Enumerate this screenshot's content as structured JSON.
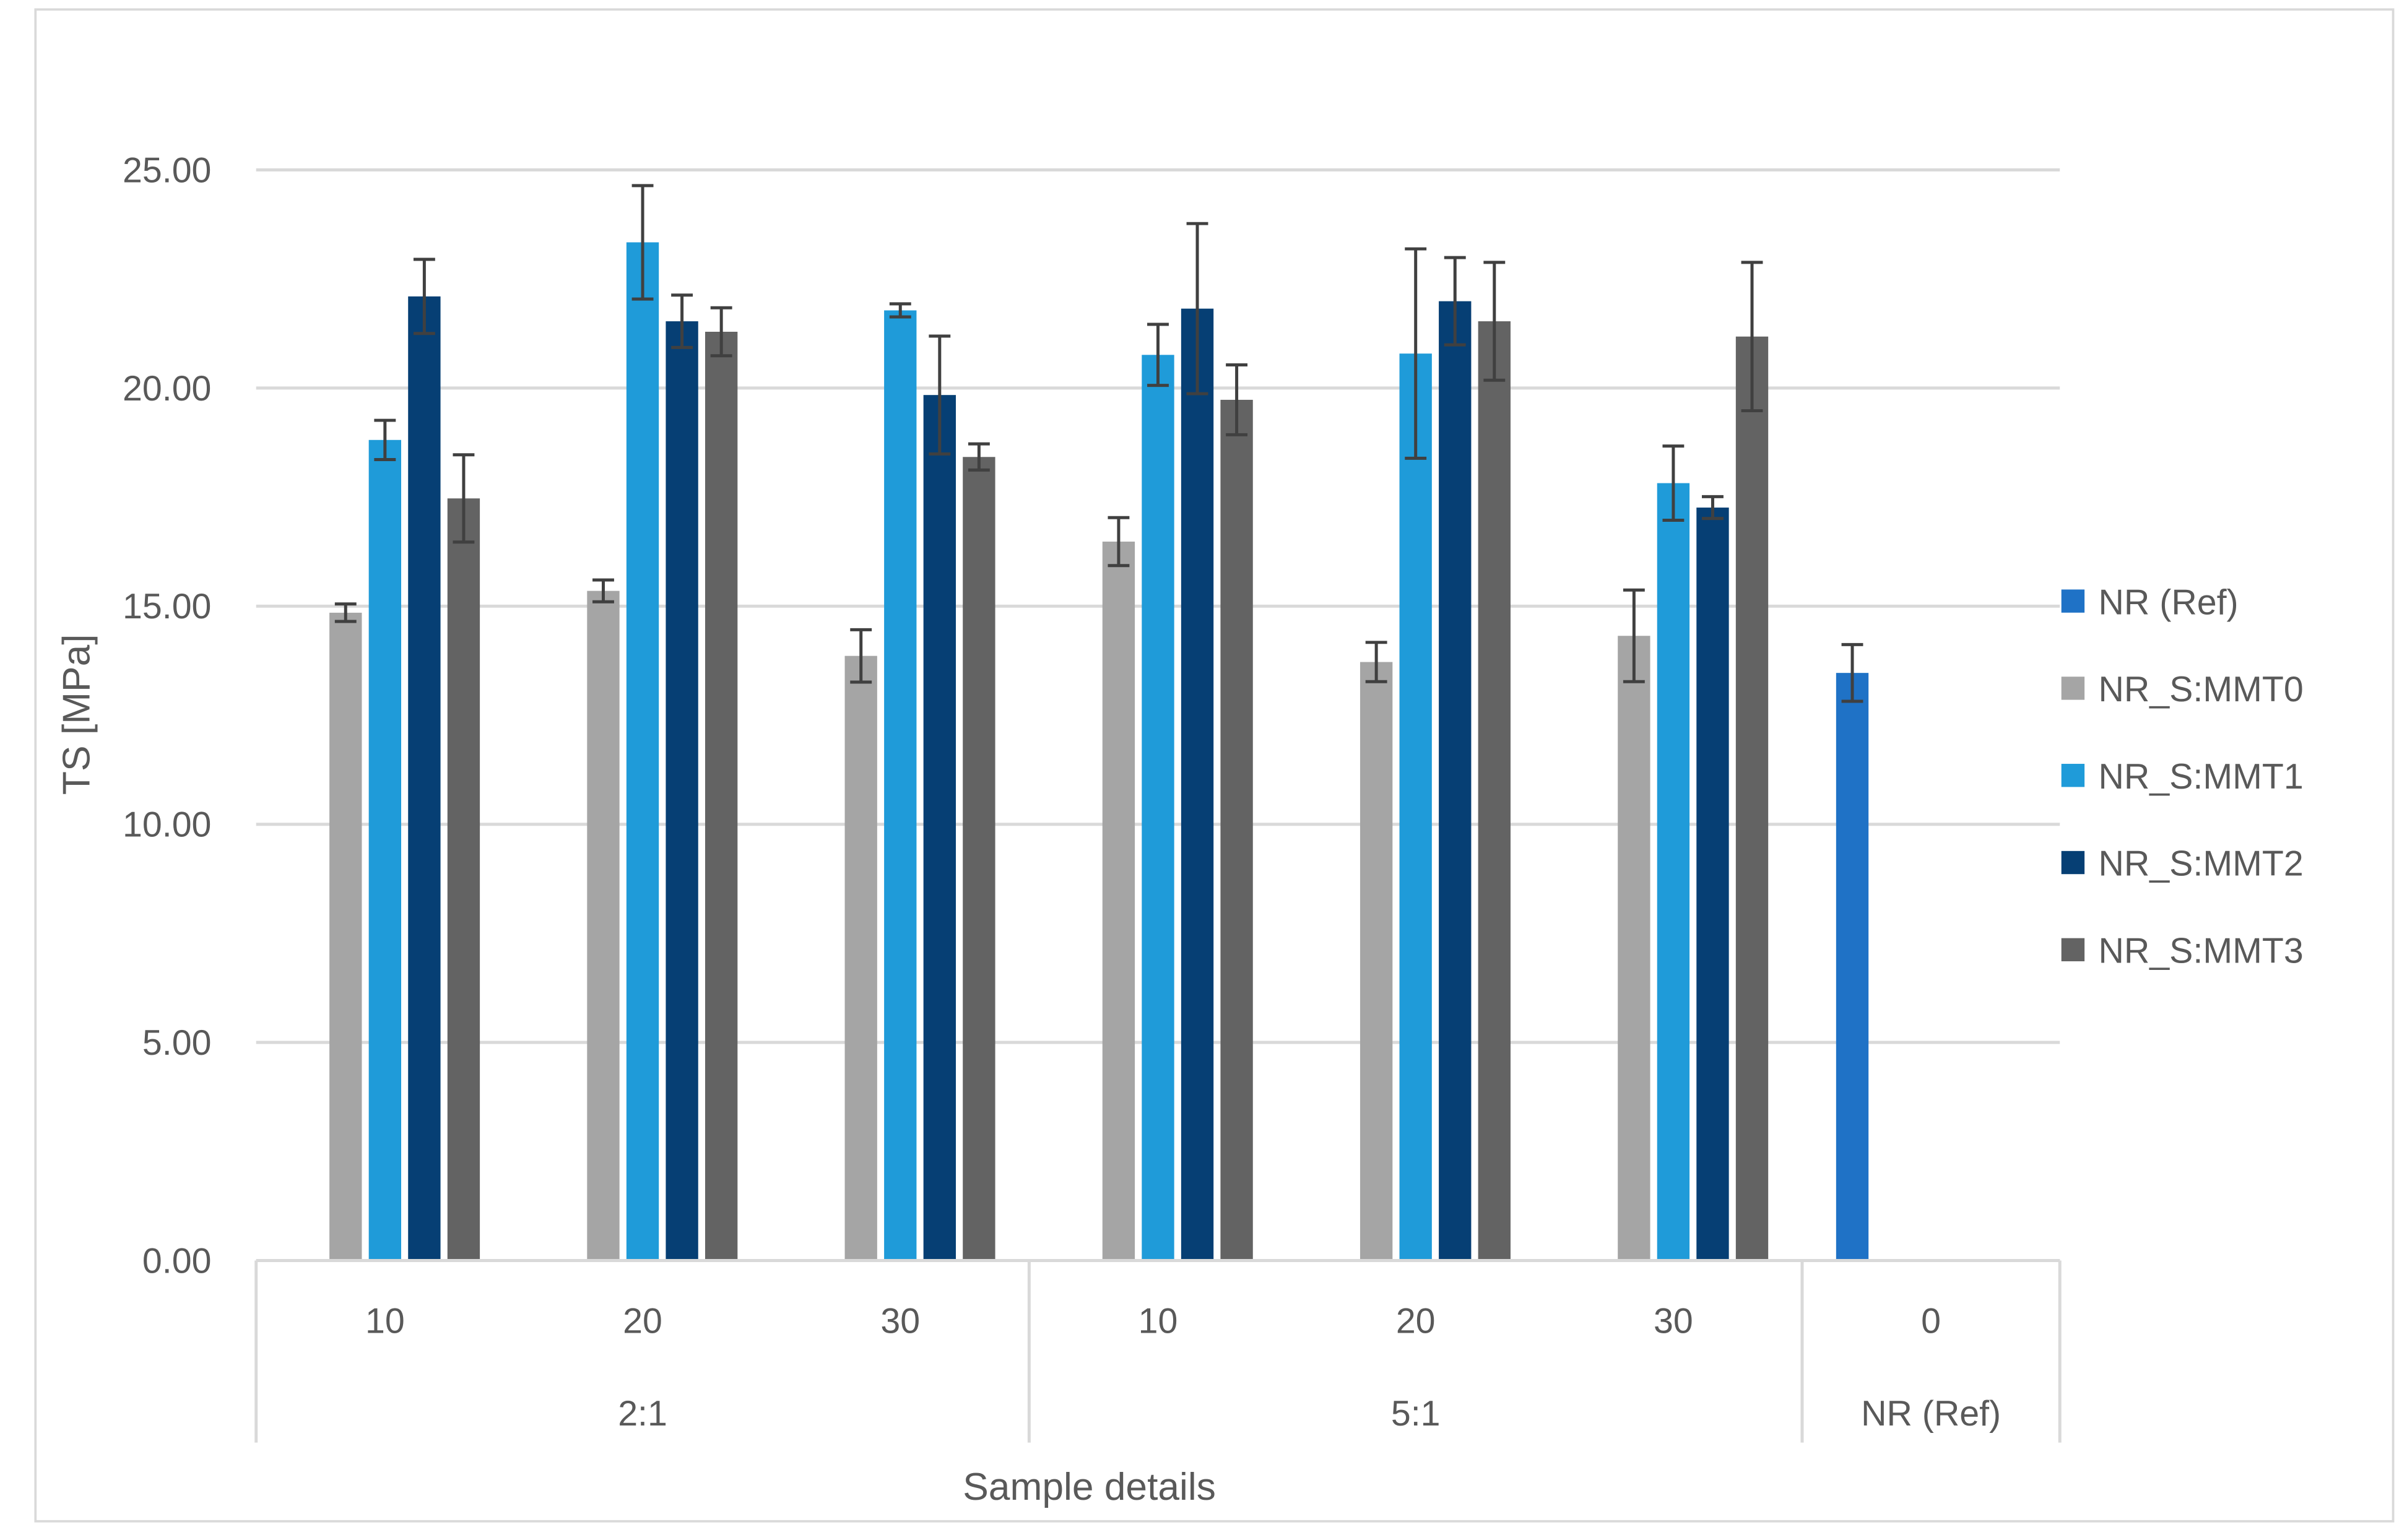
{
  "chart_data": {
    "type": "bar",
    "title": "",
    "xlabel": "Sample details",
    "ylabel": "TS [MPa]",
    "ylim": [
      0,
      25
    ],
    "yticks": [
      "0.00",
      "5.00",
      "10.00",
      "15.00",
      "20.00",
      "25.00"
    ],
    "grid": true,
    "legend_position": "right",
    "groups": [
      {
        "label": "2:1",
        "categories": [
          "10",
          "20",
          "30"
        ]
      },
      {
        "label": "5:1",
        "categories": [
          "10",
          "20",
          "30"
        ]
      },
      {
        "label": "NR (Ref)",
        "categories": [
          "0"
        ]
      }
    ],
    "categories": [
      "2:1 / 10",
      "2:1 / 20",
      "2:1 / 30",
      "5:1 / 10",
      "5:1 / 20",
      "5:1 / 30",
      "NR (Ref) / 0"
    ],
    "series": [
      {
        "name": "NR (Ref)",
        "color": "#1f72c6",
        "values": [
          null,
          null,
          null,
          null,
          null,
          null,
          13.47
        ],
        "errors": [
          null,
          null,
          null,
          null,
          null,
          null,
          0.65
        ]
      },
      {
        "name": "NR_S:MMT0",
        "color": "#a5a5a5",
        "values": [
          14.85,
          15.35,
          13.86,
          16.48,
          13.72,
          14.32,
          null
        ],
        "errors": [
          0.2,
          0.25,
          0.6,
          0.55,
          0.45,
          1.05,
          null
        ]
      },
      {
        "name": "NR_S:MMT1",
        "color": "#1f9bd9",
        "values": [
          18.81,
          23.34,
          21.78,
          20.76,
          20.79,
          17.82,
          null
        ],
        "errors": [
          0.45,
          1.3,
          0.15,
          0.7,
          2.4,
          0.85,
          null
        ]
      },
      {
        "name": "NR_S:MMT2",
        "color": "#063f74",
        "values": [
          22.1,
          21.53,
          19.84,
          21.82,
          21.99,
          17.26,
          null
        ],
        "errors": [
          0.85,
          0.6,
          1.35,
          1.95,
          1.0,
          0.25,
          null
        ]
      },
      {
        "name": "NR_S:MMT3",
        "color": "#636363",
        "values": [
          17.47,
          21.29,
          18.42,
          19.73,
          21.53,
          21.18,
          null
        ],
        "errors": [
          1.0,
          0.55,
          0.3,
          0.8,
          1.35,
          1.7,
          null
        ]
      }
    ]
  }
}
